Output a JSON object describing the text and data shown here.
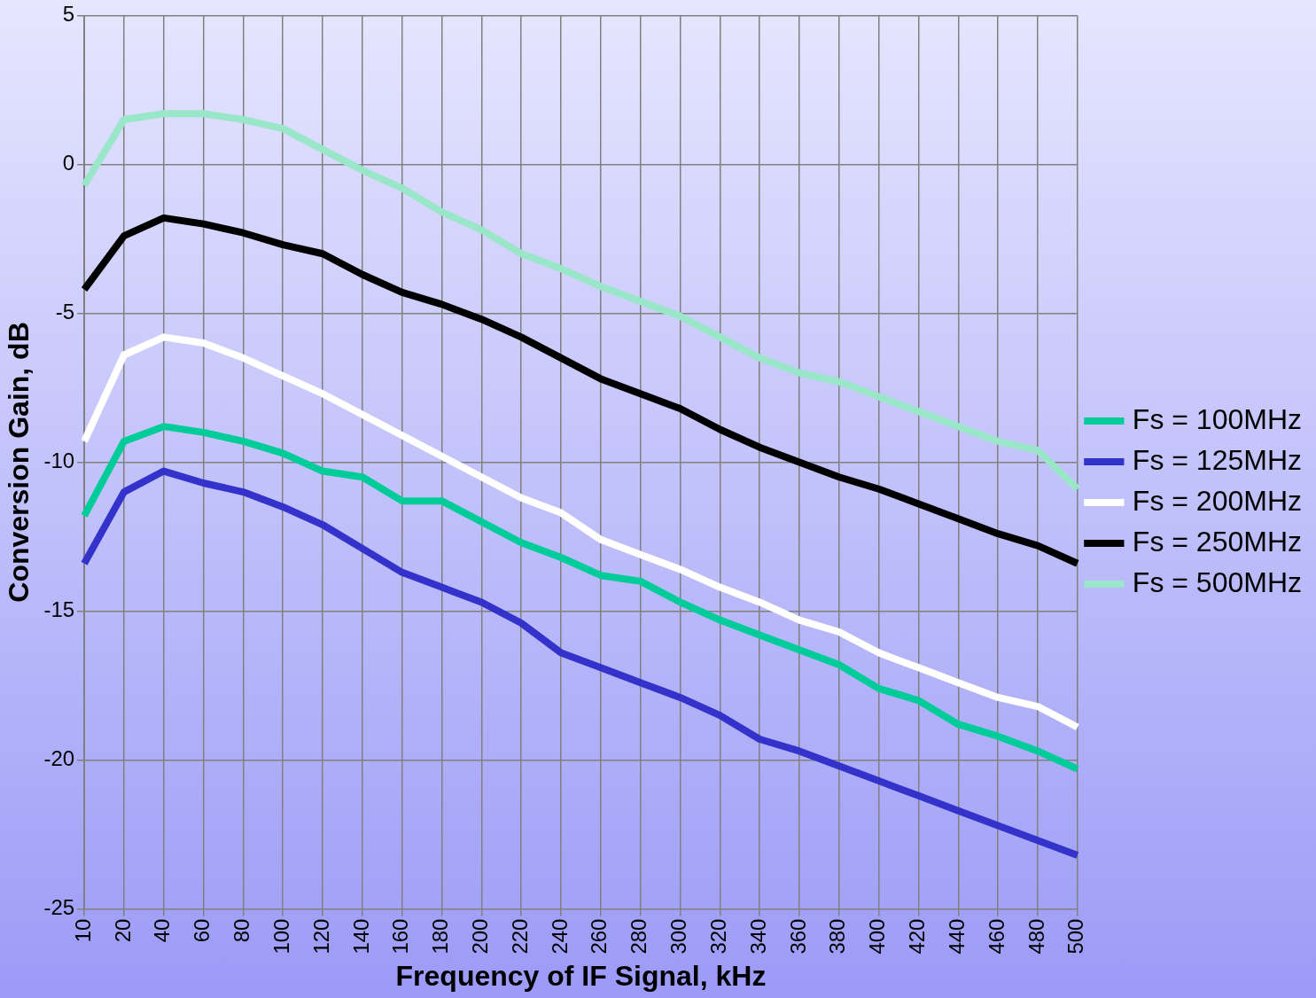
{
  "chart_data": {
    "type": "line",
    "xlabel": "Frequency of IF Signal, kHz",
    "ylabel": "Conversion Gain, dB",
    "categories": [
      "10",
      "20",
      "40",
      "60",
      "80",
      "100",
      "120",
      "140",
      "160",
      "180",
      "200",
      "220",
      "240",
      "260",
      "280",
      "300",
      "320",
      "340",
      "360",
      "380",
      "400",
      "420",
      "440",
      "460",
      "480",
      "500"
    ],
    "series": [
      {
        "name": "Fs = 100MHz",
        "color": "#00cc99",
        "values": [
          -11.8,
          -9.3,
          -8.8,
          -9.0,
          -9.3,
          -9.7,
          -10.3,
          -10.5,
          -11.3,
          -11.3,
          -12.0,
          -12.7,
          -13.2,
          -13.8,
          -14.0,
          -14.7,
          -15.3,
          -15.8,
          -16.3,
          -16.8,
          -17.6,
          -18.0,
          -18.8,
          -19.2,
          -19.7,
          -20.3
        ]
      },
      {
        "name": "Fs = 125MHz",
        "color": "#3333cc",
        "values": [
          -13.4,
          -11.0,
          -10.3,
          -10.7,
          -11.0,
          -11.5,
          -12.1,
          -12.9,
          -13.7,
          -14.2,
          -14.7,
          -15.4,
          -16.4,
          -16.9,
          -17.4,
          -17.9,
          -18.5,
          -19.3,
          -19.7,
          -20.2,
          -20.7,
          -21.2,
          -21.7,
          -22.2,
          -22.7,
          -23.2
        ]
      },
      {
        "name": "Fs = 200MHz",
        "color": "#ffffff",
        "values": [
          -9.3,
          -6.4,
          -5.8,
          -6.0,
          -6.5,
          -7.1,
          -7.7,
          -8.4,
          -9.1,
          -9.8,
          -10.5,
          -11.2,
          -11.7,
          -12.6,
          -13.1,
          -13.6,
          -14.2,
          -14.7,
          -15.3,
          -15.7,
          -16.4,
          -16.9,
          -17.4,
          -17.9,
          -18.2,
          -18.9
        ]
      },
      {
        "name": "Fs = 250MHz",
        "color": "#000000",
        "values": [
          -4.2,
          -2.4,
          -1.8,
          -2.0,
          -2.3,
          -2.7,
          -3.0,
          -3.7,
          -4.3,
          -4.7,
          -5.2,
          -5.8,
          -6.5,
          -7.2,
          -7.7,
          -8.2,
          -8.9,
          -9.5,
          -10.0,
          -10.5,
          -10.9,
          -11.4,
          -11.9,
          -12.4,
          -12.8,
          -13.4
        ]
      },
      {
        "name": "Fs = 500MHz",
        "color": "#99e6c8",
        "values": [
          -0.7,
          1.5,
          1.7,
          1.7,
          1.5,
          1.2,
          0.5,
          -0.2,
          -0.8,
          -1.6,
          -2.2,
          -3.0,
          -3.5,
          -4.1,
          -4.6,
          -5.1,
          -5.8,
          -6.5,
          -7.0,
          -7.3,
          -7.8,
          -8.3,
          -8.8,
          -9.3,
          -9.6,
          -10.9
        ]
      }
    ],
    "ylim": [
      -25,
      5
    ],
    "yticks": [
      -25,
      -20,
      -15,
      -10,
      -5,
      0,
      5
    ],
    "grid": true,
    "legend": "right",
    "marker": "none",
    "line_style": "solid"
  }
}
